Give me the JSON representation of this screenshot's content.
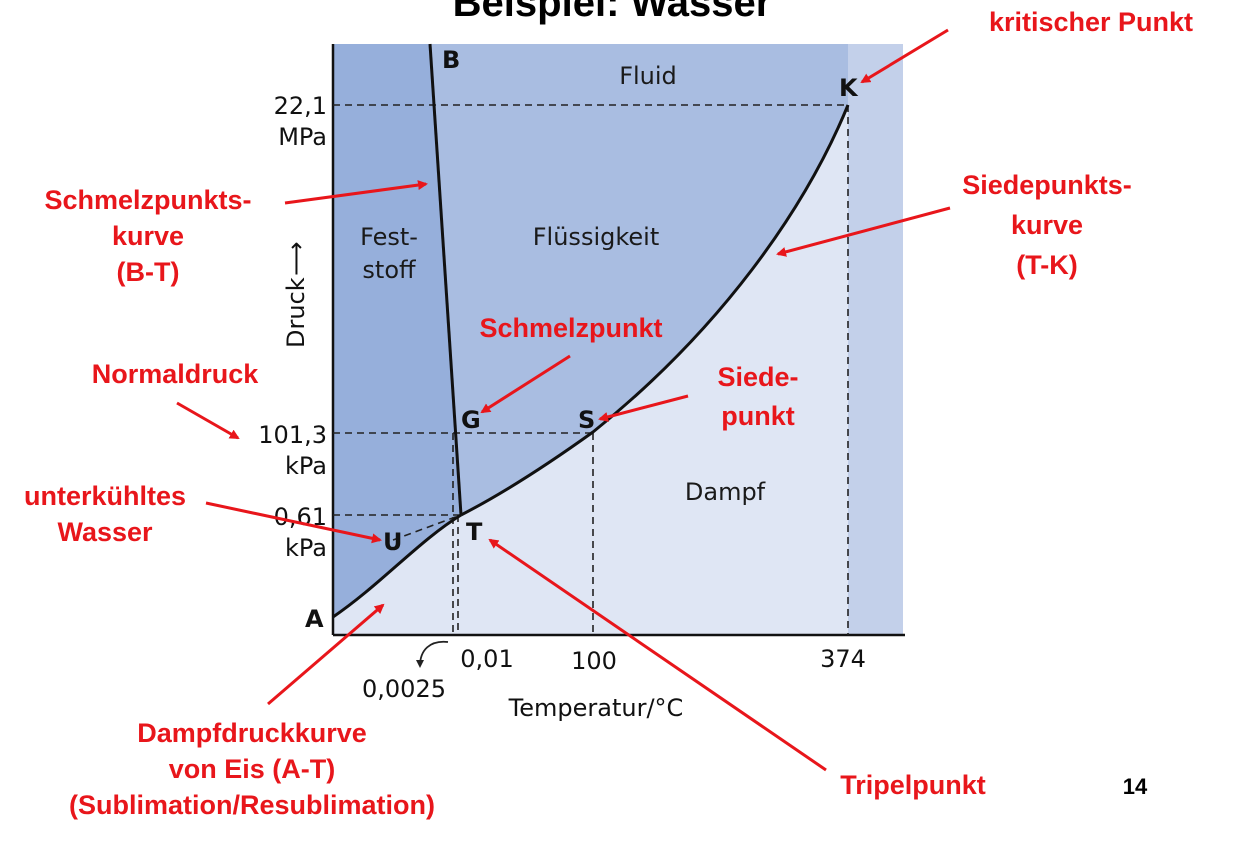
{
  "title": "Beispiel: Wasser",
  "page_number": "14",
  "colors": {
    "fluid_region": "#c3d0ea",
    "vapor_region": "#dfe6f4",
    "liquid_region": "#a9bde1",
    "solid_region": "#96afdb",
    "annotation": "#e8161b"
  },
  "regions": {
    "fluid": "Fluid",
    "solid_line1": "Fest-",
    "solid_line2": "stoff",
    "liquid": "Flüssigkeit",
    "vapor": "Dampf"
  },
  "points": {
    "B": "B",
    "K": "K",
    "G": "G",
    "S": "S",
    "U": "U",
    "T": "T",
    "A": "A"
  },
  "y_axis": {
    "label": "Druck",
    "arrow": "⟶",
    "ticks": [
      {
        "value": "22,1",
        "unit": "MPa"
      },
      {
        "value": "101,3",
        "unit": "kPa"
      },
      {
        "value": "0,61",
        "unit": "kPa"
      }
    ]
  },
  "x_axis": {
    "label": "Temperatur/°C",
    "ticks": [
      "0,01",
      "100",
      "374"
    ],
    "small_tick": "0,0025"
  },
  "annotations": {
    "kritischer_punkt": "kritischer Punkt",
    "schmelz_kurve": [
      "Schmelzpunkts-",
      "kurve",
      "(B-T)"
    ],
    "siede_kurve": [
      "Siedepunkts-",
      "kurve",
      "(T-K)"
    ],
    "schmelzpunkt": "Schmelzpunkt",
    "normaldruck": "Normaldruck",
    "siedepunkt": [
      "Siede-",
      "punkt"
    ],
    "unterkuehlt": [
      "unterkühltes",
      "Wasser"
    ],
    "dampfdruck": [
      "Dampfdruckkurve",
      "von Eis (A-T)",
      "(Sublimation/Resublimation)"
    ],
    "tripelpunkt": "Tripelpunkt"
  }
}
